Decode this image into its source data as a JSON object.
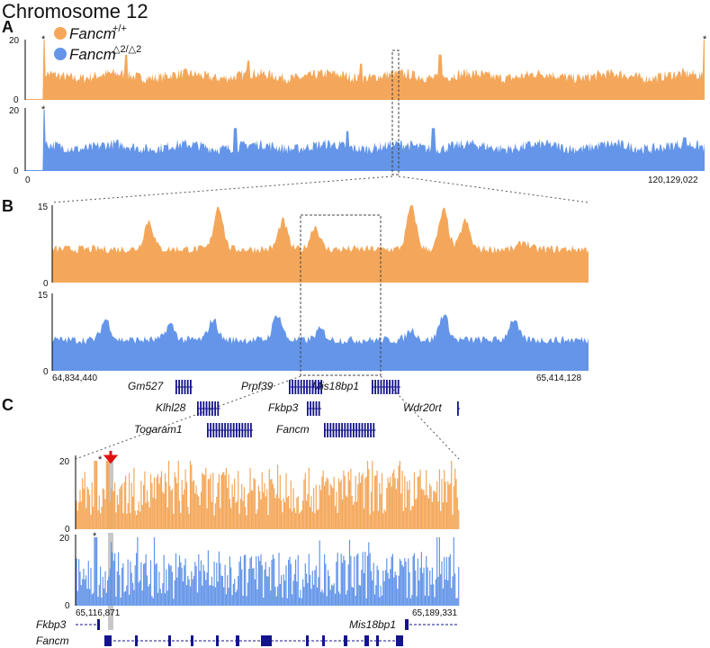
{
  "title": "Chromosome 12",
  "colors": {
    "wt": "#f4a75a",
    "mut": "#6495e8",
    "gene": "#14148c",
    "axis": "#000000",
    "highlight": "#c8c8c8",
    "arrow": "#e01010"
  },
  "legend": [
    {
      "name": "Fancm",
      "sup": "+/+",
      "color": "#f4a75a"
    },
    {
      "name": "Fancm",
      "sup": "△2/△2",
      "color": "#6495e8"
    }
  ],
  "panels": {
    "a": "A",
    "b": "B",
    "c": "C"
  },
  "chart_data": [
    {
      "id": "A",
      "type": "area",
      "title": "Chromosome 12",
      "x_range": [
        0,
        120129022
      ],
      "x_start_label": "0",
      "x_end_label": "120,129,022",
      "zoom_window": [
        64834440,
        65414128
      ],
      "series": [
        {
          "name": "Fancm+/+",
          "ylim": [
            0,
            20
          ],
          "yticks": [
            "0",
            "20"
          ],
          "baseline": 8,
          "spikes_at_fraction": [
            [
              0.0,
              20
            ],
            [
              0.125,
              15
            ],
            [
              0.31,
              13
            ],
            [
              0.48,
              12
            ],
            [
              0.6,
              15
            ],
            [
              1.0,
              20
            ]
          ],
          "marked_peaks": [
            "*",
            "*"
          ]
        },
        {
          "name": "Fancm△2/△2",
          "ylim": [
            0,
            20
          ],
          "yticks": [
            "0",
            "20"
          ],
          "baseline": 8,
          "spikes_at_fraction": [
            [
              0.0,
              20
            ],
            [
              0.29,
              14
            ],
            [
              0.46,
              13
            ],
            [
              0.59,
              14
            ],
            [
              0.97,
              11
            ]
          ],
          "marked_peaks": [
            "*"
          ]
        }
      ]
    },
    {
      "id": "B",
      "type": "area",
      "x_range": [
        64834440,
        65414128
      ],
      "x_start_label": "64,834,440",
      "x_end_label": "65,414,128",
      "zoom_window": [
        65116871,
        65189331
      ],
      "series": [
        {
          "name": "Fancm+/+",
          "ylim": [
            0,
            15
          ],
          "yticks": [
            "0",
            "15"
          ],
          "baseline": 6.5,
          "peaks": [
            [
              0.18,
              12
            ],
            [
              0.31,
              15
            ],
            [
              0.43,
              12
            ],
            [
              0.49,
              11
            ],
            [
              0.67,
              15
            ],
            [
              0.73,
              14
            ],
            [
              0.77,
              12
            ],
            [
              0.88,
              8
            ]
          ]
        },
        {
          "name": "Fancm△2/△2",
          "ylim": [
            0,
            15
          ],
          "yticks": [
            "0",
            "15"
          ],
          "baseline": 6,
          "peaks": [
            [
              0.1,
              10
            ],
            [
              0.22,
              9
            ],
            [
              0.3,
              10
            ],
            [
              0.42,
              11
            ],
            [
              0.5,
              8
            ],
            [
              0.67,
              8
            ],
            [
              0.73,
              11
            ],
            [
              0.86,
              10
            ]
          ]
        }
      ],
      "genes": [
        {
          "name": "Gm527",
          "position": 0.235
        },
        {
          "name": "Prpf39",
          "position": 0.46
        },
        {
          "name": "Mis18bp1",
          "position": 0.65
        },
        {
          "name": "Klhl28",
          "position": 0.28
        },
        {
          "name": "Fkbp3",
          "position": 0.49
        },
        {
          "name": "Wdr20rt",
          "position": 0.76
        },
        {
          "name": "Togaram1",
          "position": 0.325
        },
        {
          "name": "Fancm",
          "position": 0.55
        }
      ]
    },
    {
      "id": "C",
      "type": "bar",
      "x_range": [
        65116871,
        65189331
      ],
      "x_start_label": "65,116,871",
      "x_end_label": "65,189,331",
      "series": [
        {
          "name": "Fancm+/+",
          "ylim": [
            0,
            20
          ],
          "yticks": [
            "0",
            "20"
          ],
          "baseline": 11,
          "marked_peaks": [
            "*"
          ],
          "arrow_at_fraction": 0.095
        },
        {
          "name": "Fancm△2/△2",
          "ylim": [
            0,
            20
          ],
          "yticks": [
            "0",
            "20"
          ],
          "baseline": 9,
          "marked_peaks": [
            "*"
          ]
        }
      ],
      "genes": [
        {
          "name": "Fkbp3",
          "strand": "-"
        },
        {
          "name": "Mis18bp1",
          "strand": "-"
        },
        {
          "name": "Fancm",
          "strand": "+"
        }
      ]
    }
  ]
}
